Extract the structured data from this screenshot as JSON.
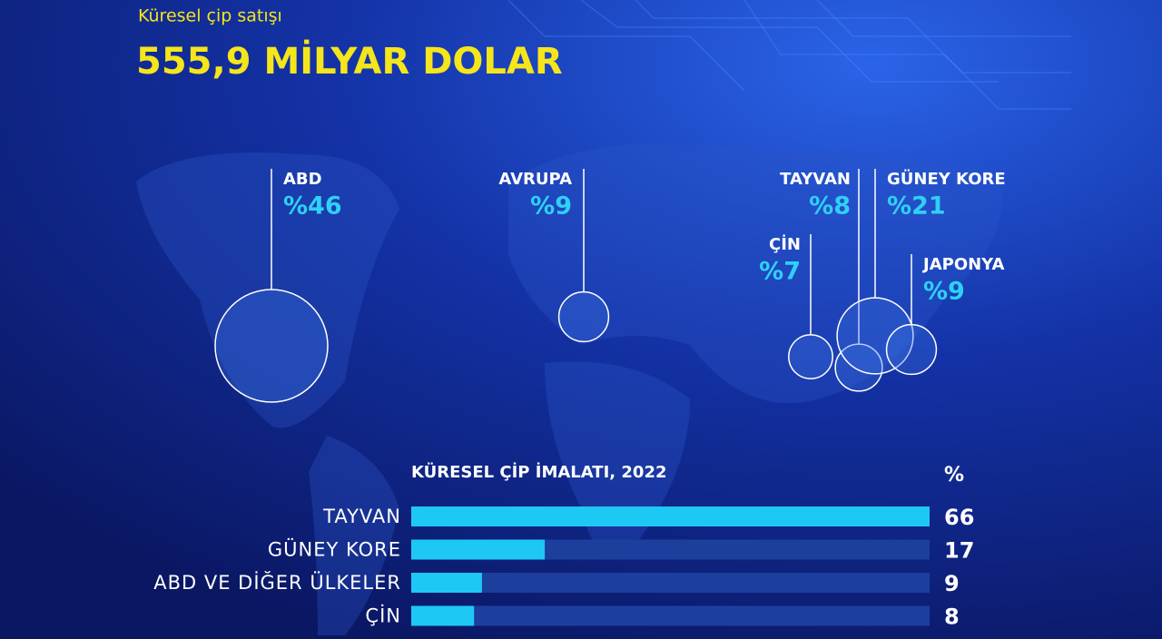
{
  "chart_data": [
    {
      "type": "bubble",
      "title": "Küresel çip satışı",
      "subtitle": "555,9 MİLYAR DOLAR",
      "categories": [
        "ABD",
        "AVRUPA",
        "TAYVAN",
        "GÜNEY KORE",
        "ÇİN",
        "JAPONYA"
      ],
      "values": [
        46,
        9,
        8,
        21,
        7,
        9
      ],
      "value_labels": [
        "%46",
        "%9",
        "%8",
        "%21",
        "%7",
        "%9"
      ],
      "color": "#2fd0f5"
    },
    {
      "type": "bar",
      "title": "KÜRESEL ÇİP İMALATI, 2022",
      "unit": "%",
      "categories": [
        "TAYVAN",
        "GÜNEY KORE",
        "ABD VE DİĞER ÜLKELER",
        "ÇİN"
      ],
      "values": [
        66,
        17,
        9,
        8
      ],
      "xlim": [
        0,
        66
      ],
      "color": "#1ec8f5",
      "track_color": "#1c3f9e"
    }
  ]
}
